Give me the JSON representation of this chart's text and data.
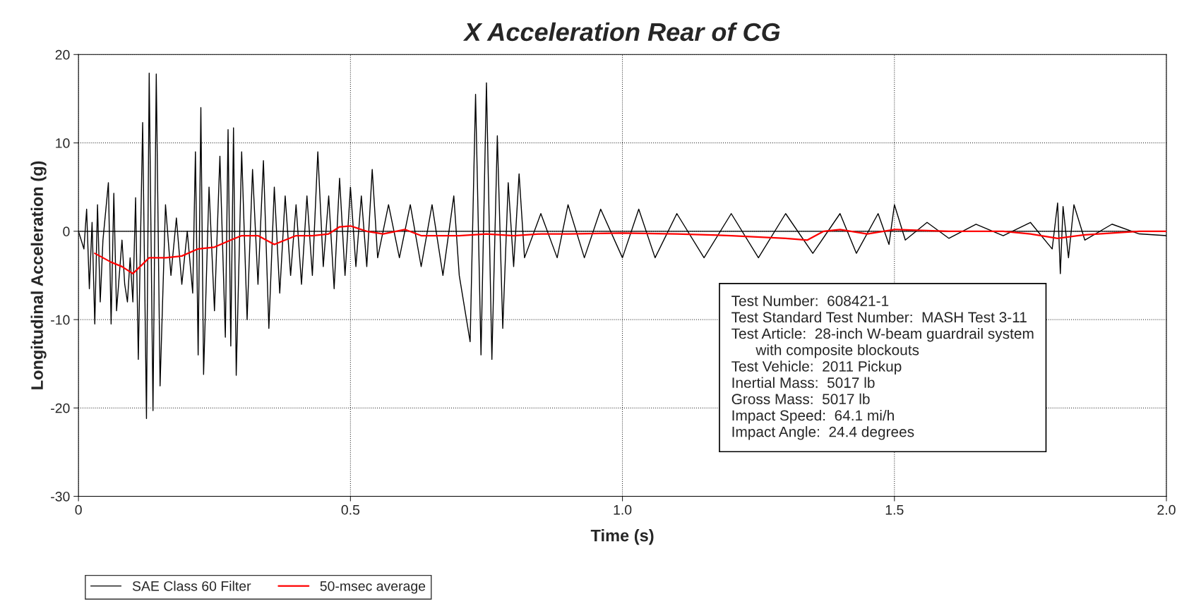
{
  "chart_data": {
    "type": "line",
    "title": "X Acceleration Rear of CG",
    "xlabel": "Time (s)",
    "ylabel": "Longitudinal Acceleration (g)",
    "xlim": [
      0,
      2.0
    ],
    "xticks": [
      0,
      0.5,
      {
        "value": 1,
        "label": "1.0"
      },
      1.5,
      {
        "value": 2,
        "label": "2.0"
      }
    ],
    "ylim": [
      -30,
      20
    ],
    "yticks": [
      -30,
      -20,
      -10,
      0,
      10,
      20
    ],
    "grid": true,
    "legend": "bottom left",
    "ref_lines": [
      {
        "axis": "y",
        "value": 0,
        "color": "#000000"
      }
    ],
    "series": [
      {
        "name": "SAE Class 60 Filter",
        "color": "#000000",
        "x": [
          0,
          0.01,
          0.015,
          0.02,
          0.025,
          0.03,
          0.035,
          0.04,
          0.045,
          0.055,
          0.06,
          0.065,
          0.07,
          0.08,
          0.085,
          0.09,
          0.095,
          0.1,
          0.105,
          0.11,
          0.118,
          0.125,
          0.13,
          0.137,
          0.143,
          0.15,
          0.16,
          0.17,
          0.18,
          0.19,
          0.2,
          0.21,
          0.215,
          0.22,
          0.225,
          0.23,
          0.24,
          0.25,
          0.26,
          0.27,
          0.275,
          0.28,
          0.285,
          0.29,
          0.3,
          0.31,
          0.32,
          0.33,
          0.34,
          0.35,
          0.36,
          0.37,
          0.38,
          0.39,
          0.4,
          0.41,
          0.42,
          0.43,
          0.44,
          0.45,
          0.46,
          0.47,
          0.48,
          0.49,
          0.5,
          0.51,
          0.52,
          0.53,
          0.54,
          0.55,
          0.57,
          0.59,
          0.61,
          0.63,
          0.65,
          0.67,
          0.69,
          0.7,
          0.72,
          0.73,
          0.74,
          0.75,
          0.76,
          0.77,
          0.78,
          0.79,
          0.8,
          0.81,
          0.82,
          0.85,
          0.88,
          0.9,
          0.93,
          0.96,
          1.0,
          1.03,
          1.06,
          1.1,
          1.15,
          1.2,
          1.25,
          1.3,
          1.35,
          1.4,
          1.43,
          1.47,
          1.49,
          1.5,
          1.52,
          1.56,
          1.6,
          1.65,
          1.7,
          1.75,
          1.79,
          1.8,
          1.805,
          1.81,
          1.82,
          1.83,
          1.85,
          1.9,
          1.95,
          2.0
        ],
        "values": [
          0,
          -2,
          2.5,
          -6.5,
          1,
          -10.5,
          3,
          -8,
          -1,
          5.5,
          -10.5,
          4.3,
          -9,
          -1,
          -6,
          -8,
          -3,
          -8,
          3.8,
          -14.5,
          12.3,
          -21.2,
          17.9,
          -20.3,
          17.8,
          -17.5,
          3,
          -5,
          1.5,
          -6,
          0,
          -7,
          9,
          -14,
          14,
          -16.2,
          5,
          -9,
          8.5,
          -12,
          11.5,
          -13,
          11.7,
          -16.3,
          9,
          -10,
          7,
          -6,
          8,
          -11,
          5,
          -7,
          4,
          -5,
          3,
          -6,
          4,
          -5,
          9,
          -4,
          4,
          -6.5,
          6,
          -5,
          5,
          -4,
          4,
          -4,
          7,
          -3,
          3,
          -3,
          3,
          -4,
          3,
          -5,
          4,
          -5,
          -12.5,
          15.5,
          -14,
          16.8,
          -14.5,
          10.8,
          -11,
          5.5,
          -4,
          6.5,
          -3,
          2,
          -3,
          3,
          -3,
          2.5,
          -3,
          2.5,
          -3,
          2,
          -3,
          2,
          -3,
          2,
          -2.5,
          2,
          -2.5,
          2,
          -1.5,
          3,
          -1,
          1,
          -0.8,
          0.8,
          -0.5,
          1,
          -2,
          3.2,
          -4.8,
          2.8,
          -3,
          3,
          -1,
          0.8,
          -0.3,
          -0.5
        ]
      },
      {
        "name": "50-msec average",
        "color": "#ff0000",
        "x": [
          0.03,
          0.06,
          0.08,
          0.1,
          0.13,
          0.16,
          0.19,
          0.22,
          0.25,
          0.28,
          0.3,
          0.33,
          0.36,
          0.38,
          0.4,
          0.43,
          0.46,
          0.48,
          0.5,
          0.53,
          0.56,
          0.6,
          0.63,
          0.66,
          0.7,
          0.75,
          0.8,
          0.85,
          0.9,
          1.0,
          1.1,
          1.2,
          1.3,
          1.34,
          1.37,
          1.4,
          1.45,
          1.5,
          1.55,
          1.6,
          1.7,
          1.75,
          1.8,
          1.85,
          1.9,
          1.95,
          2.0
        ],
        "values": [
          -2.5,
          -3.5,
          -4,
          -4.8,
          -3,
          -3,
          -2.8,
          -2,
          -1.8,
          -1,
          -0.5,
          -0.5,
          -1.5,
          -1,
          -0.5,
          -0.5,
          -0.3,
          0.5,
          0.6,
          0,
          -0.3,
          0.2,
          -0.5,
          -0.5,
          -0.5,
          -0.3,
          -0.5,
          -0.3,
          -0.3,
          -0.2,
          -0.3,
          -0.5,
          -0.8,
          -1,
          0,
          0.2,
          -0.3,
          0.2,
          0.1,
          0,
          0,
          -0.3,
          -0.8,
          -0.4,
          -0.2,
          0,
          0
        ]
      }
    ],
    "annotations": [
      "Test Number:  608421-1",
      "Test Standard Test Number:  MASH Test 3-11",
      "Test Article:  28-inch W-beam guardrail system\n      with composite blockouts",
      "Test Vehicle:  2011 Pickup",
      "Inertial Mass:  5017 lb",
      "Gross Mass:  5017 lb",
      "Impact Speed:  64.1 mi/h",
      "Impact Angle:  24.4 degrees"
    ]
  }
}
